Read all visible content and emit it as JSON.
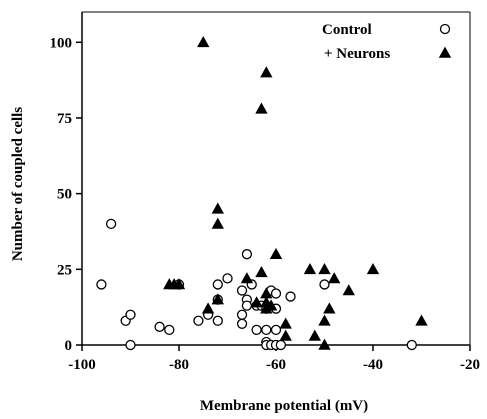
{
  "chart_data": {
    "type": "scatter",
    "xlabel": "Membrane potential (mV)",
    "ylabel": "Number of coupled cells",
    "xlim": [
      -100,
      -20
    ],
    "ylim": [
      0,
      110
    ],
    "x_ticks": [
      -100,
      -80,
      -60,
      -40,
      -20
    ],
    "x_tick_labels": [
      "-100",
      "-80",
      "-60",
      "-40",
      "-20"
    ],
    "y_ticks": [
      0,
      25,
      50,
      75,
      100
    ],
    "y_tick_labels": [
      "0",
      "25",
      "50",
      "75",
      "100"
    ],
    "grid": false,
    "legend_position": "top-right",
    "series": [
      {
        "name": "Control",
        "marker": "open-circle",
        "color": "#000000",
        "points": [
          [
            -96,
            20
          ],
          [
            -94,
            40
          ],
          [
            -91,
            8
          ],
          [
            -90,
            10
          ],
          [
            -90,
            0
          ],
          [
            -84,
            6
          ],
          [
            -82,
            5
          ],
          [
            -80,
            20
          ],
          [
            -76,
            8
          ],
          [
            -74,
            10
          ],
          [
            -72,
            20
          ],
          [
            -72,
            15
          ],
          [
            -72,
            8
          ],
          [
            -70,
            22
          ],
          [
            -67,
            18
          ],
          [
            -67,
            10
          ],
          [
            -67,
            7
          ],
          [
            -66,
            30
          ],
          [
            -66,
            15
          ],
          [
            -66,
            13
          ],
          [
            -65,
            20
          ],
          [
            -64,
            13
          ],
          [
            -64,
            5
          ],
          [
            -63,
            13
          ],
          [
            -62,
            12
          ],
          [
            -62,
            5
          ],
          [
            -62,
            1
          ],
          [
            -62,
            0
          ],
          [
            -61,
            18
          ],
          [
            -61,
            0
          ],
          [
            -60,
            17
          ],
          [
            -60,
            12
          ],
          [
            -60,
            5
          ],
          [
            -60,
            0
          ],
          [
            -59,
            0
          ],
          [
            -57,
            16
          ],
          [
            -50,
            20
          ],
          [
            -32,
            0
          ]
        ]
      },
      {
        "name": "+ Neurons",
        "marker": "filled-triangle",
        "color": "#000000",
        "points": [
          [
            -75,
            100
          ],
          [
            -62,
            90
          ],
          [
            -63,
            78
          ],
          [
            -72,
            45
          ],
          [
            -72,
            40
          ],
          [
            -82,
            20
          ],
          [
            -81,
            20
          ],
          [
            -80,
            20
          ],
          [
            -74,
            12
          ],
          [
            -72,
            15
          ],
          [
            -66,
            22
          ],
          [
            -64,
            14
          ],
          [
            -63,
            24
          ],
          [
            -62,
            17
          ],
          [
            -62,
            14
          ],
          [
            -62,
            12
          ],
          [
            -61,
            13
          ],
          [
            -60,
            30
          ],
          [
            -58,
            7
          ],
          [
            -58,
            3
          ],
          [
            -53,
            25
          ],
          [
            -52,
            3
          ],
          [
            -50,
            25
          ],
          [
            -50,
            8
          ],
          [
            -50,
            0
          ],
          [
            -49,
            12
          ],
          [
            -48,
            22
          ],
          [
            -45,
            18
          ],
          [
            -40,
            25
          ],
          [
            -30,
            8
          ]
        ]
      }
    ]
  }
}
